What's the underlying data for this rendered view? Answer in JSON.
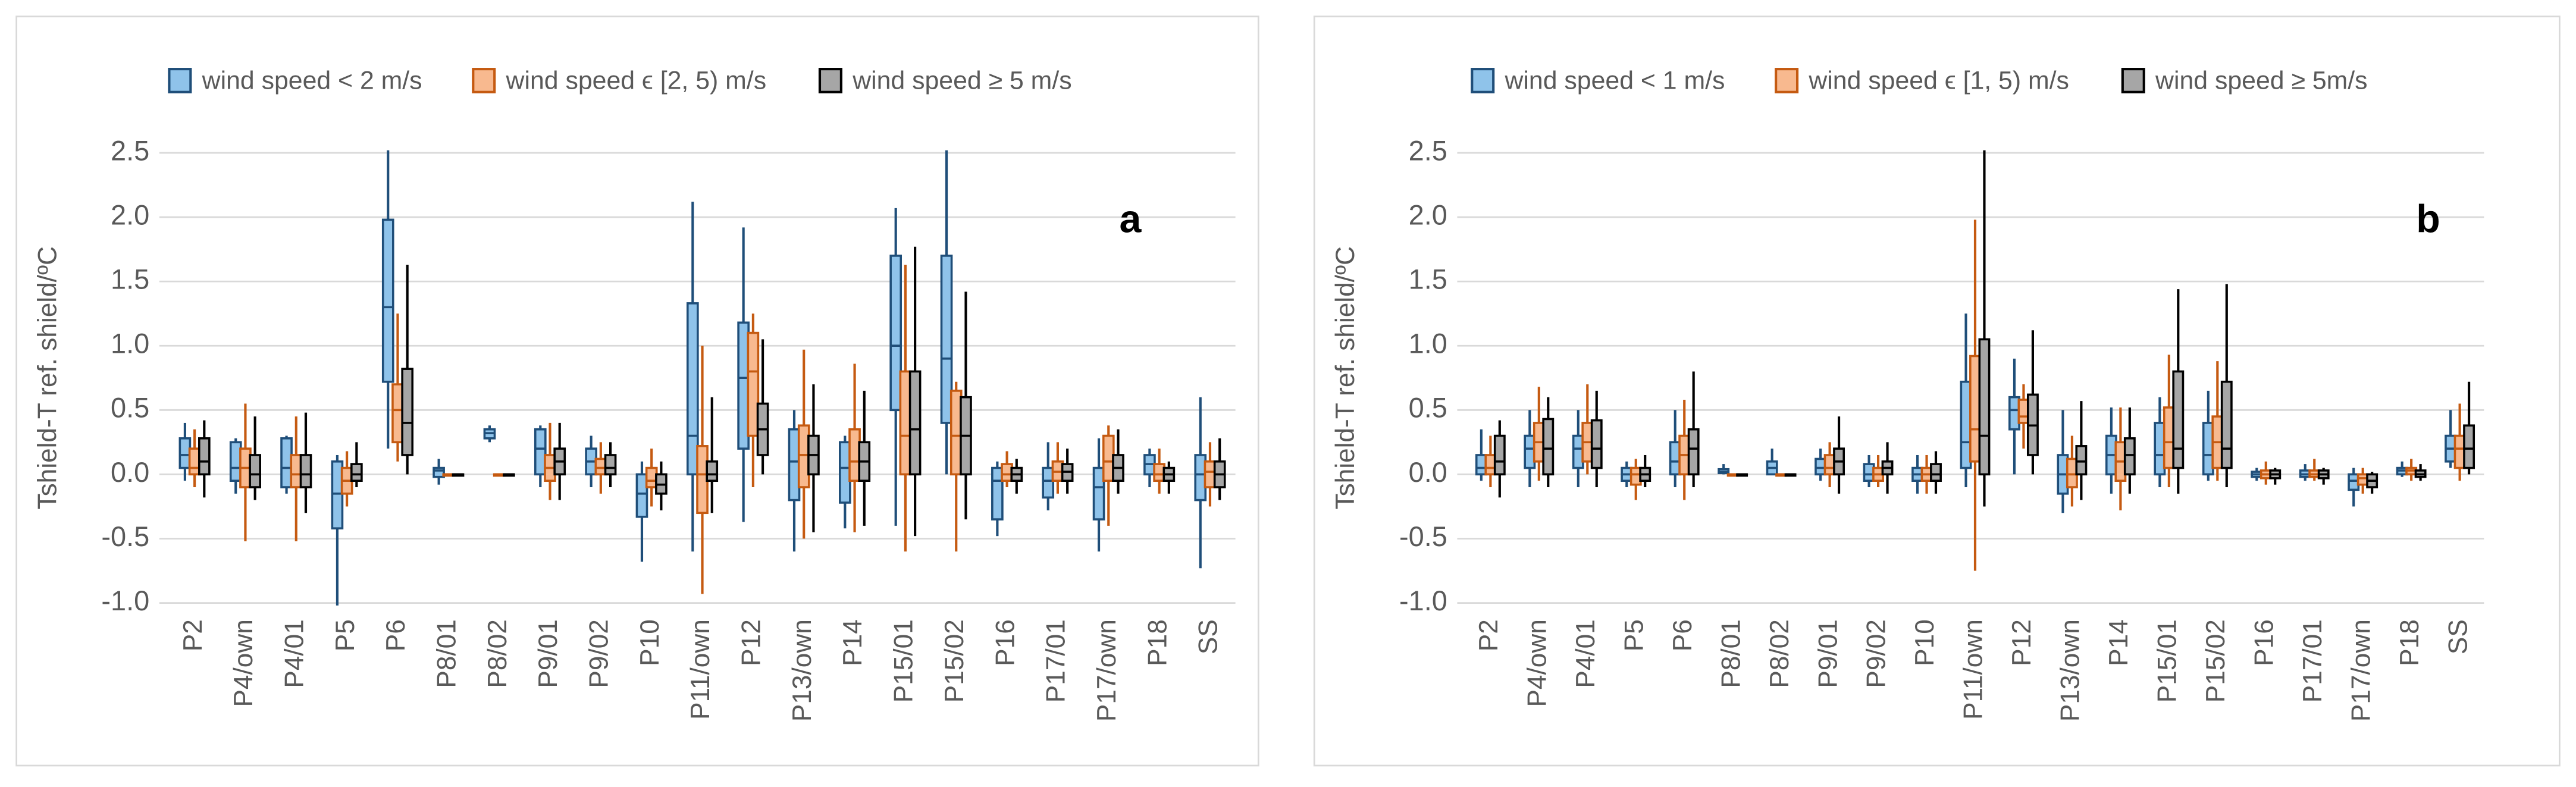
{
  "chart_data": [
    {
      "type": "box",
      "annotation": "a",
      "ylabel": "Tshield-T ref. shield/ºC",
      "categories": [
        "P2",
        "P4/own",
        "P4/01",
        "P5",
        "P6",
        "P8/01",
        "P8/02",
        "P9/01",
        "P9/02",
        "P10",
        "P11/own",
        "P12",
        "P13/own",
        "P14",
        "P15/01",
        "P15/02",
        "P16",
        "P17/01",
        "P17/own",
        "P18",
        "SS"
      ],
      "ylim": [
        -1,
        2.5
      ],
      "yticks": [
        {
          "value": -1,
          "label": "-1.0"
        },
        -0.5,
        {
          "value": 0,
          "label": "0.0"
        },
        0.5,
        {
          "value": 1,
          "label": "1.0"
        },
        1.5,
        {
          "value": 2,
          "label": "2.0"
        },
        2.5
      ],
      "grid": true,
      "legend": "top",
      "series": [
        {
          "name": "wind speed < 2 m/s",
          "color": "#8fc3ea",
          "edge_color": "#1f4e79",
          "values": [
            [
              -0.05,
              0.05,
              0.15,
              0.28,
              0.4
            ],
            [
              -0.15,
              -0.05,
              0.05,
              0.25,
              0.28
            ],
            [
              -0.15,
              -0.1,
              0.05,
              0.28,
              0.3
            ],
            [
              -1.02,
              -0.42,
              -0.15,
              0.1,
              0.15
            ],
            [
              0.2,
              0.72,
              1.3,
              1.98,
              2.52
            ],
            [
              -0.08,
              -0.02,
              0.03,
              0.05,
              0.12
            ],
            [
              0.25,
              0.28,
              0.32,
              0.35,
              0.38
            ],
            [
              -0.1,
              0,
              0.2,
              0.35,
              0.38
            ],
            [
              -0.1,
              0,
              0.1,
              0.2,
              0.3
            ],
            [
              -0.68,
              -0.33,
              -0.15,
              0,
              0.1
            ],
            [
              -0.6,
              0,
              0.3,
              1.33,
              2.12
            ],
            [
              -0.37,
              0.2,
              0.75,
              1.18,
              1.92
            ],
            [
              -0.6,
              -0.2,
              0.1,
              0.35,
              0.5
            ],
            [
              -0.42,
              -0.22,
              0.05,
              0.25,
              0.3
            ],
            [
              -0.4,
              0.5,
              1,
              1.7,
              2.07
            ],
            [
              0,
              0.4,
              0.9,
              1.7,
              2.52
            ],
            [
              -0.48,
              -0.35,
              -0.05,
              0.05,
              0.1
            ],
            [
              -0.28,
              -0.18,
              -0.05,
              0.05,
              0.25
            ],
            [
              -0.6,
              -0.35,
              -0.1,
              0.05,
              0.28
            ],
            [
              -0.1,
              0,
              0.08,
              0.15,
              0.2
            ],
            [
              -0.73,
              -0.2,
              0,
              0.15,
              0.6
            ]
          ]
        },
        {
          "name": "wind speed ϵ [2, 5) m/s",
          "color": "#f8b98f",
          "edge_color": "#c55a11",
          "values": [
            [
              -0.1,
              0,
              0.05,
              0.2,
              0.35
            ],
            [
              -0.52,
              -0.1,
              0.05,
              0.2,
              0.55
            ],
            [
              -0.52,
              -0.1,
              0,
              0.15,
              0.45
            ],
            [
              -0.25,
              -0.15,
              -0.05,
              0.05,
              0.18
            ],
            [
              0.1,
              0.25,
              0.5,
              0.7,
              1.25
            ],
            [
              0,
              0,
              0,
              0,
              0
            ],
            [
              0,
              0,
              0,
              0,
              0
            ],
            [
              -0.2,
              -0.05,
              0.05,
              0.15,
              0.4
            ],
            [
              -0.15,
              0,
              0.05,
              0.12,
              0.25
            ],
            [
              -0.25,
              -0.1,
              -0.05,
              0.05,
              0.2
            ],
            [
              -0.93,
              -0.3,
              0,
              0.22,
              1
            ],
            [
              -0.1,
              0.3,
              0.8,
              1.1,
              1.25
            ],
            [
              -0.5,
              -0.1,
              0.15,
              0.38,
              0.97
            ],
            [
              -0.45,
              -0.05,
              0.1,
              0.35,
              0.86
            ],
            [
              -0.6,
              0,
              0.3,
              0.8,
              1.63
            ],
            [
              -0.6,
              0,
              0.3,
              0.65,
              0.72
            ],
            [
              -0.1,
              -0.05,
              0,
              0.08,
              0.18
            ],
            [
              -0.15,
              -0.05,
              0.02,
              0.1,
              0.25
            ],
            [
              -0.4,
              -0.05,
              0.1,
              0.3,
              0.38
            ],
            [
              -0.15,
              -0.05,
              0,
              0.08,
              0.2
            ],
            [
              -0.25,
              -0.1,
              0.02,
              0.1,
              0.25
            ]
          ]
        },
        {
          "name": "wind speed ≥ 5 m/s",
          "color": "#a6a6a6",
          "edge_color": "#000000",
          "values": [
            [
              -0.18,
              0,
              0.1,
              0.28,
              0.42
            ],
            [
              -0.2,
              -0.1,
              0,
              0.15,
              0.45
            ],
            [
              -0.3,
              -0.1,
              0,
              0.15,
              0.48
            ],
            [
              -0.1,
              -0.05,
              0,
              0.08,
              0.25
            ],
            [
              0,
              0.15,
              0.4,
              0.82,
              1.63
            ],
            [
              0,
              0,
              0,
              0,
              0
            ],
            [
              0,
              0,
              0,
              0,
              0
            ],
            [
              -0.2,
              0,
              0.1,
              0.2,
              0.4
            ],
            [
              -0.1,
              0,
              0.05,
              0.15,
              0.25
            ],
            [
              -0.28,
              -0.15,
              -0.08,
              0,
              0.1
            ],
            [
              -0.3,
              -0.05,
              0,
              0.1,
              0.6
            ],
            [
              0,
              0.15,
              0.35,
              0.55,
              1.05
            ],
            [
              -0.45,
              0,
              0.15,
              0.3,
              0.7
            ],
            [
              -0.4,
              -0.05,
              0.1,
              0.25,
              0.65
            ],
            [
              -0.48,
              0,
              0.35,
              0.8,
              1.77
            ],
            [
              -0.35,
              0,
              0.3,
              0.6,
              1.42
            ],
            [
              -0.15,
              -0.05,
              0,
              0.05,
              0.12
            ],
            [
              -0.15,
              -0.05,
              0.02,
              0.08,
              0.2
            ],
            [
              -0.15,
              -0.05,
              0.05,
              0.15,
              0.35
            ],
            [
              -0.15,
              -0.05,
              0,
              0.05,
              0.1
            ],
            [
              -0.2,
              -0.1,
              0,
              0.1,
              0.28
            ]
          ]
        }
      ]
    },
    {
      "type": "box",
      "annotation": "b",
      "ylabel": "Tshield-T ref. shield/ºC",
      "categories": [
        "P2",
        "P4/own",
        "P4/01",
        "P5",
        "P6",
        "P8/01",
        "P8/02",
        "P9/01",
        "P9/02",
        "P10",
        "P11/own",
        "P12",
        "P13/own",
        "P14",
        "P15/01",
        "P15/02",
        "P16",
        "P17/01",
        "P17/own",
        "P18",
        "SS"
      ],
      "ylim": [
        -1,
        2.5
      ],
      "yticks": [
        {
          "value": -1,
          "label": "-1.0"
        },
        -0.5,
        {
          "value": 0,
          "label": "0.0"
        },
        0.5,
        {
          "value": 1,
          "label": "1.0"
        },
        1.5,
        {
          "value": 2,
          "label": "2.0"
        },
        2.5
      ],
      "grid": true,
      "legend": "top",
      "series": [
        {
          "name": "wind speed < 1 m/s",
          "color": "#8fc3ea",
          "edge_color": "#1f4e79",
          "values": [
            [
              -0.05,
              0,
              0.05,
              0.15,
              0.35
            ],
            [
              -0.1,
              0.05,
              0.2,
              0.3,
              0.5
            ],
            [
              -0.1,
              0.05,
              0.2,
              0.3,
              0.5
            ],
            [
              -0.1,
              -0.05,
              0,
              0.05,
              0.1
            ],
            [
              -0.1,
              0,
              0.1,
              0.25,
              0.5
            ],
            [
              0,
              0.01,
              0.02,
              0.04,
              0.08
            ],
            [
              0,
              0,
              0.05,
              0.1,
              0.2
            ],
            [
              -0.05,
              0,
              0.05,
              0.12,
              0.2
            ],
            [
              -0.1,
              -0.05,
              0,
              0.08,
              0.15
            ],
            [
              -0.15,
              -0.05,
              0,
              0.05,
              0.15
            ],
            [
              -0.1,
              0.05,
              0.25,
              0.72,
              1.25
            ],
            [
              0,
              0.35,
              0.5,
              0.6,
              0.9
            ],
            [
              -0.3,
              -0.15,
              0,
              0.15,
              0.5
            ],
            [
              -0.15,
              0,
              0.15,
              0.3,
              0.52
            ],
            [
              -0.1,
              0,
              0.15,
              0.4,
              0.6
            ],
            [
              -0.05,
              0,
              0.15,
              0.4,
              0.65
            ],
            [
              -0.05,
              -0.02,
              0,
              0.02,
              0.05
            ],
            [
              -0.05,
              -0.02,
              0,
              0.03,
              0.08
            ],
            [
              -0.25,
              -0.12,
              -0.05,
              0,
              0.05
            ],
            [
              -0.02,
              0,
              0.03,
              0.05,
              0.1
            ],
            [
              0.05,
              0.1,
              0.2,
              0.3,
              0.5
            ]
          ]
        },
        {
          "name": "wind speed ϵ [1, 5) m/s",
          "color": "#f8b98f",
          "edge_color": "#c55a11",
          "values": [
            [
              -0.1,
              0,
              0.05,
              0.15,
              0.3
            ],
            [
              -0.05,
              0.1,
              0.25,
              0.4,
              0.68
            ],
            [
              0,
              0.1,
              0.25,
              0.4,
              0.7
            ],
            [
              -0.2,
              -0.08,
              0,
              0.05,
              0.12
            ],
            [
              -0.2,
              0,
              0.15,
              0.3,
              0.58
            ],
            [
              0,
              0,
              0,
              0,
              0
            ],
            [
              0,
              0,
              0,
              0,
              0
            ],
            [
              -0.1,
              0,
              0.05,
              0.15,
              0.25
            ],
            [
              -0.1,
              -0.05,
              0,
              0.05,
              0.15
            ],
            [
              -0.15,
              -0.05,
              0,
              0.05,
              0.15
            ],
            [
              -0.75,
              0.1,
              0.35,
              0.92,
              1.98
            ],
            [
              0.2,
              0.4,
              0.45,
              0.58,
              0.7
            ],
            [
              -0.25,
              -0.1,
              0,
              0.12,
              0.3
            ],
            [
              -0.28,
              -0.05,
              0.1,
              0.25,
              0.52
            ],
            [
              -0.1,
              0.05,
              0.25,
              0.52,
              0.93
            ],
            [
              -0.05,
              0.05,
              0.25,
              0.45,
              0.88
            ],
            [
              -0.08,
              -0.03,
              0,
              0.03,
              0.1
            ],
            [
              -0.05,
              -0.02,
              0,
              0.03,
              0.12
            ],
            [
              -0.15,
              -0.08,
              -0.03,
              0,
              0.05
            ],
            [
              -0.05,
              0,
              0.03,
              0.05,
              0.12
            ],
            [
              -0.05,
              0.05,
              0.2,
              0.3,
              0.55
            ]
          ]
        },
        {
          "name": "wind speed ≥ 5m/s",
          "color": "#a6a6a6",
          "edge_color": "#000000",
          "values": [
            [
              -0.18,
              0,
              0.1,
              0.3,
              0.42
            ],
            [
              -0.1,
              0,
              0.2,
              0.43,
              0.6
            ],
            [
              -0.1,
              0.05,
              0.2,
              0.42,
              0.65
            ],
            [
              -0.1,
              -0.05,
              0,
              0.05,
              0.15
            ],
            [
              -0.1,
              0,
              0.2,
              0.35,
              0.8
            ],
            [
              0,
              0,
              0,
              0,
              0
            ],
            [
              0,
              0,
              0,
              0,
              0
            ],
            [
              -0.15,
              0,
              0.1,
              0.2,
              0.45
            ],
            [
              -0.15,
              0,
              0.05,
              0.1,
              0.25
            ],
            [
              -0.15,
              -0.05,
              0,
              0.08,
              0.18
            ],
            [
              -0.25,
              0,
              0.3,
              1.05,
              2.52
            ],
            [
              0,
              0.15,
              0.38,
              0.62,
              1.12
            ],
            [
              -0.2,
              0,
              0.1,
              0.22,
              0.57
            ],
            [
              -0.15,
              0,
              0.15,
              0.28,
              0.52
            ],
            [
              -0.15,
              0.05,
              0.2,
              0.8,
              1.44
            ],
            [
              -0.1,
              0.05,
              0.2,
              0.72,
              1.48
            ],
            [
              -0.08,
              -0.03,
              0,
              0.03,
              0.05
            ],
            [
              -0.08,
              -0.03,
              0,
              0.03,
              0.05
            ],
            [
              -0.15,
              -0.1,
              -0.05,
              0,
              0.02
            ],
            [
              -0.05,
              -0.02,
              0,
              0.03,
              0.08
            ],
            [
              0,
              0.05,
              0.2,
              0.38,
              0.72
            ]
          ]
        }
      ]
    }
  ]
}
